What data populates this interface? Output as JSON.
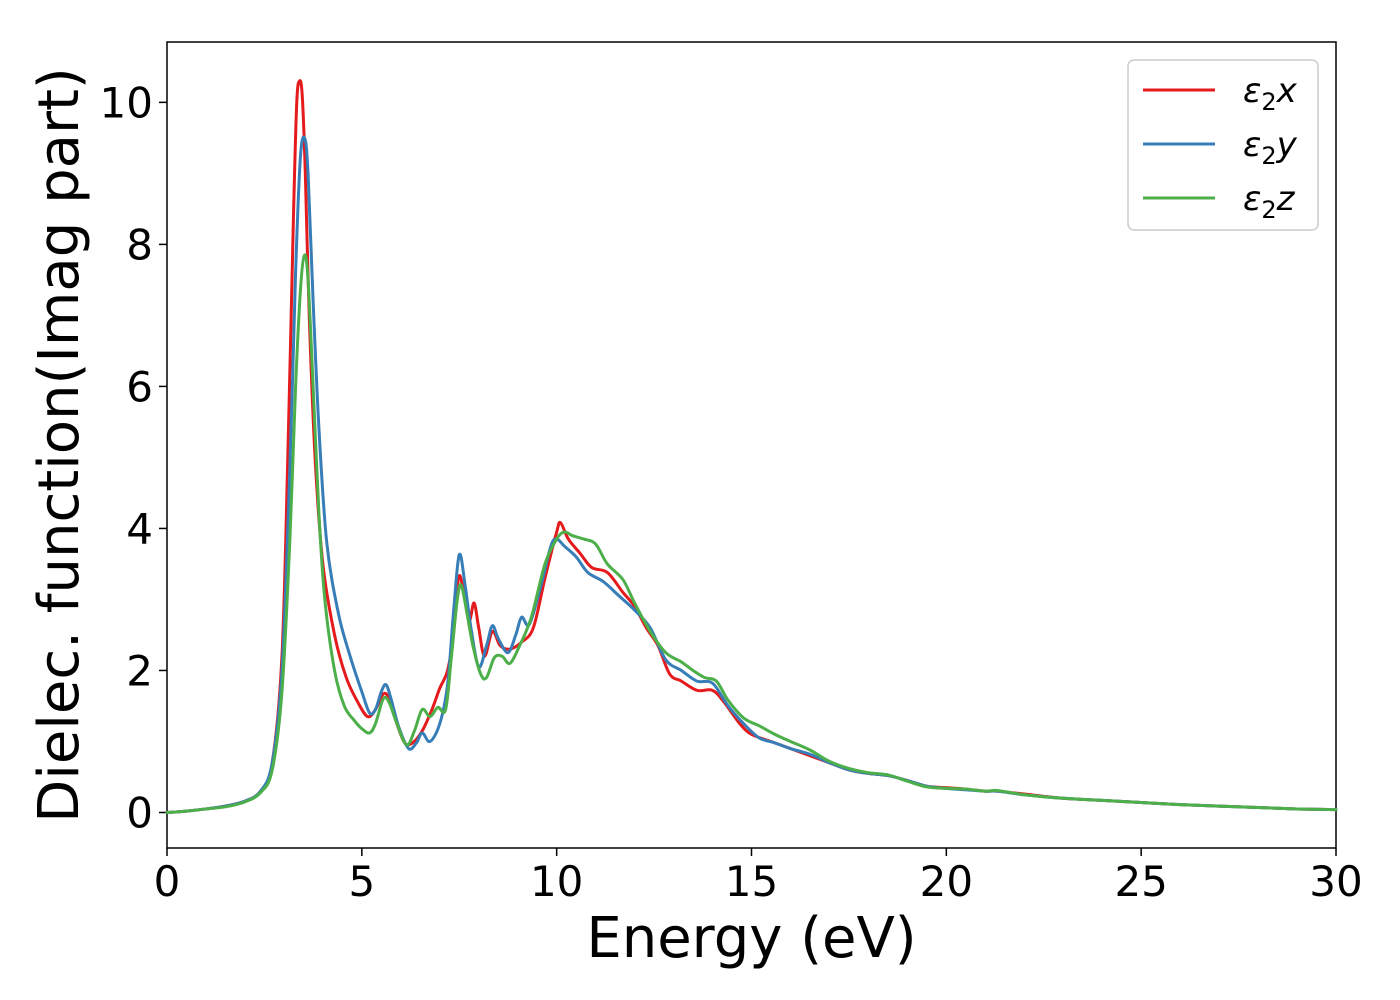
{
  "chart_data": {
    "type": "line",
    "title": "",
    "xlabel": "Energy (eV)",
    "ylabel": "Dielec. function(Imag part)",
    "xlim": [
      0,
      30
    ],
    "ylim": [
      -0.5,
      10.85
    ],
    "xticks": [
      0,
      5,
      10,
      15,
      20,
      25,
      30
    ],
    "yticks": [
      0,
      2,
      4,
      6,
      8,
      10
    ],
    "xtick_labels": [
      "0",
      "5",
      "10",
      "15",
      "20",
      "25",
      "30"
    ],
    "ytick_labels": [
      "0",
      "2",
      "4",
      "6",
      "8",
      "10"
    ],
    "grid": false,
    "legend_position": "top-right",
    "series": [
      {
        "name": "ε2x",
        "legend_base": "ε",
        "legend_sub": "2",
        "legend_suffix": "x",
        "color": "#e41a1c",
        "points": [
          [
            0,
            0
          ],
          [
            0.5,
            0.02
          ],
          [
            1.0,
            0.05
          ],
          [
            1.5,
            0.09
          ],
          [
            2.0,
            0.16
          ],
          [
            2.4,
            0.3
          ],
          [
            2.7,
            0.7
          ],
          [
            2.95,
            2.2
          ],
          [
            3.1,
            5.0
          ],
          [
            3.25,
            8.5
          ],
          [
            3.33,
            10.0
          ],
          [
            3.4,
            10.3
          ],
          [
            3.47,
            10.1
          ],
          [
            3.55,
            9.0
          ],
          [
            3.65,
            7.0
          ],
          [
            3.8,
            5.0
          ],
          [
            4.0,
            3.5
          ],
          [
            4.3,
            2.5
          ],
          [
            4.6,
            1.9
          ],
          [
            4.9,
            1.55
          ],
          [
            5.15,
            1.35
          ],
          [
            5.35,
            1.45
          ],
          [
            5.55,
            1.67
          ],
          [
            5.7,
            1.6
          ],
          [
            5.9,
            1.25
          ],
          [
            6.1,
            0.98
          ],
          [
            6.3,
            0.98
          ],
          [
            6.55,
            1.15
          ],
          [
            6.8,
            1.45
          ],
          [
            7.0,
            1.75
          ],
          [
            7.2,
            2.0
          ],
          [
            7.35,
            2.5
          ],
          [
            7.48,
            3.3
          ],
          [
            7.6,
            3.15
          ],
          [
            7.75,
            2.7
          ],
          [
            7.88,
            2.95
          ],
          [
            8.0,
            2.6
          ],
          [
            8.15,
            2.2
          ],
          [
            8.35,
            2.55
          ],
          [
            8.55,
            2.35
          ],
          [
            8.8,
            2.3
          ],
          [
            9.1,
            2.4
          ],
          [
            9.4,
            2.6
          ],
          [
            9.7,
            3.3
          ],
          [
            10.0,
            3.95
          ],
          [
            10.1,
            4.08
          ],
          [
            10.3,
            3.85
          ],
          [
            10.6,
            3.65
          ],
          [
            10.9,
            3.45
          ],
          [
            11.3,
            3.38
          ],
          [
            11.7,
            3.1
          ],
          [
            12.0,
            2.9
          ],
          [
            12.3,
            2.6
          ],
          [
            12.6,
            2.35
          ],
          [
            12.9,
            1.95
          ],
          [
            13.2,
            1.85
          ],
          [
            13.6,
            1.72
          ],
          [
            14.0,
            1.72
          ],
          [
            14.3,
            1.55
          ],
          [
            14.7,
            1.25
          ],
          [
            15.0,
            1.1
          ],
          [
            15.5,
            1.0
          ],
          [
            16.0,
            0.9
          ],
          [
            16.5,
            0.8
          ],
          [
            17.0,
            0.7
          ],
          [
            17.5,
            0.6
          ],
          [
            18.0,
            0.55
          ],
          [
            18.5,
            0.52
          ],
          [
            19.0,
            0.45
          ],
          [
            19.5,
            0.37
          ],
          [
            20.0,
            0.35
          ],
          [
            20.5,
            0.33
          ],
          [
            21.0,
            0.3
          ],
          [
            21.3,
            0.3
          ],
          [
            22.0,
            0.26
          ],
          [
            23.0,
            0.2
          ],
          [
            24.0,
            0.17
          ],
          [
            25.0,
            0.14
          ],
          [
            26.0,
            0.11
          ],
          [
            27.0,
            0.09
          ],
          [
            28.0,
            0.07
          ],
          [
            29.0,
            0.05
          ],
          [
            30.0,
            0.04
          ]
        ]
      },
      {
        "name": "ε2y",
        "legend_base": "ε",
        "legend_sub": "2",
        "legend_suffix": "y",
        "color": "#377eb8",
        "points": [
          [
            0,
            0
          ],
          [
            0.5,
            0.02
          ],
          [
            1.0,
            0.05
          ],
          [
            1.5,
            0.09
          ],
          [
            2.0,
            0.16
          ],
          [
            2.4,
            0.3
          ],
          [
            2.7,
            0.7
          ],
          [
            2.95,
            2.0
          ],
          [
            3.15,
            4.8
          ],
          [
            3.3,
            7.6
          ],
          [
            3.42,
            9.2
          ],
          [
            3.53,
            9.5
          ],
          [
            3.62,
            9.0
          ],
          [
            3.75,
            7.2
          ],
          [
            3.9,
            5.4
          ],
          [
            4.1,
            3.8
          ],
          [
            4.4,
            2.8
          ],
          [
            4.7,
            2.2
          ],
          [
            5.0,
            1.7
          ],
          [
            5.2,
            1.4
          ],
          [
            5.35,
            1.45
          ],
          [
            5.5,
            1.7
          ],
          [
            5.62,
            1.8
          ],
          [
            5.75,
            1.6
          ],
          [
            5.95,
            1.2
          ],
          [
            6.2,
            0.9
          ],
          [
            6.4,
            0.98
          ],
          [
            6.55,
            1.12
          ],
          [
            6.75,
            1.0
          ],
          [
            7.0,
            1.25
          ],
          [
            7.2,
            1.8
          ],
          [
            7.35,
            2.8
          ],
          [
            7.5,
            3.63
          ],
          [
            7.65,
            3.2
          ],
          [
            7.8,
            2.6
          ],
          [
            8.0,
            2.05
          ],
          [
            8.2,
            2.35
          ],
          [
            8.35,
            2.63
          ],
          [
            8.5,
            2.45
          ],
          [
            8.75,
            2.25
          ],
          [
            8.95,
            2.5
          ],
          [
            9.1,
            2.75
          ],
          [
            9.3,
            2.65
          ],
          [
            9.6,
            3.2
          ],
          [
            9.85,
            3.75
          ],
          [
            10.0,
            3.85
          ],
          [
            10.2,
            3.75
          ],
          [
            10.5,
            3.6
          ],
          [
            10.8,
            3.38
          ],
          [
            11.2,
            3.25
          ],
          [
            11.6,
            3.05
          ],
          [
            12.0,
            2.85
          ],
          [
            12.4,
            2.6
          ],
          [
            12.8,
            2.15
          ],
          [
            13.2,
            2.0
          ],
          [
            13.6,
            1.85
          ],
          [
            14.0,
            1.82
          ],
          [
            14.4,
            1.5
          ],
          [
            14.8,
            1.25
          ],
          [
            15.2,
            1.05
          ],
          [
            15.6,
            0.98
          ],
          [
            16.0,
            0.9
          ],
          [
            16.5,
            0.82
          ],
          [
            17.0,
            0.7
          ],
          [
            17.5,
            0.6
          ],
          [
            18.0,
            0.55
          ],
          [
            18.5,
            0.52
          ],
          [
            19.0,
            0.45
          ],
          [
            19.5,
            0.37
          ],
          [
            20.0,
            0.34
          ],
          [
            20.5,
            0.32
          ],
          [
            21.0,
            0.3
          ],
          [
            21.3,
            0.3
          ],
          [
            22.0,
            0.25
          ],
          [
            23.0,
            0.2
          ],
          [
            24.0,
            0.17
          ],
          [
            25.0,
            0.14
          ],
          [
            26.0,
            0.11
          ],
          [
            27.0,
            0.09
          ],
          [
            28.0,
            0.07
          ],
          [
            29.0,
            0.05
          ],
          [
            30.0,
            0.04
          ]
        ]
      },
      {
        "name": "ε2z",
        "legend_base": "ε",
        "legend_sub": "2",
        "legend_suffix": "z",
        "color": "#4daf4a",
        "points": [
          [
            0,
            0
          ],
          [
            0.5,
            0.02
          ],
          [
            1.0,
            0.05
          ],
          [
            1.5,
            0.08
          ],
          [
            2.0,
            0.15
          ],
          [
            2.4,
            0.28
          ],
          [
            2.7,
            0.6
          ],
          [
            2.95,
            1.7
          ],
          [
            3.15,
            3.8
          ],
          [
            3.3,
            6.0
          ],
          [
            3.43,
            7.4
          ],
          [
            3.53,
            7.85
          ],
          [
            3.62,
            7.5
          ],
          [
            3.75,
            6.0
          ],
          [
            3.9,
            4.2
          ],
          [
            4.05,
            3.0
          ],
          [
            4.3,
            2.0
          ],
          [
            4.55,
            1.5
          ],
          [
            4.8,
            1.3
          ],
          [
            5.0,
            1.18
          ],
          [
            5.2,
            1.12
          ],
          [
            5.35,
            1.25
          ],
          [
            5.55,
            1.6
          ],
          [
            5.7,
            1.55
          ],
          [
            5.9,
            1.25
          ],
          [
            6.15,
            0.95
          ],
          [
            6.35,
            1.15
          ],
          [
            6.55,
            1.45
          ],
          [
            6.75,
            1.35
          ],
          [
            6.95,
            1.48
          ],
          [
            7.15,
            1.45
          ],
          [
            7.3,
            2.2
          ],
          [
            7.45,
            3.0
          ],
          [
            7.55,
            3.2
          ],
          [
            7.7,
            2.8
          ],
          [
            7.85,
            2.35
          ],
          [
            8.05,
            1.95
          ],
          [
            8.2,
            1.9
          ],
          [
            8.4,
            2.18
          ],
          [
            8.6,
            2.2
          ],
          [
            8.8,
            2.1
          ],
          [
            9.05,
            2.35
          ],
          [
            9.35,
            2.75
          ],
          [
            9.7,
            3.5
          ],
          [
            10.0,
            3.85
          ],
          [
            10.2,
            3.95
          ],
          [
            10.4,
            3.9
          ],
          [
            10.7,
            3.85
          ],
          [
            11.0,
            3.78
          ],
          [
            11.3,
            3.5
          ],
          [
            11.7,
            3.28
          ],
          [
            12.0,
            2.95
          ],
          [
            12.4,
            2.55
          ],
          [
            12.8,
            2.25
          ],
          [
            13.2,
            2.12
          ],
          [
            13.5,
            2.0
          ],
          [
            13.8,
            1.9
          ],
          [
            14.1,
            1.85
          ],
          [
            14.4,
            1.58
          ],
          [
            14.8,
            1.33
          ],
          [
            15.2,
            1.22
          ],
          [
            15.6,
            1.1
          ],
          [
            16.0,
            1.0
          ],
          [
            16.5,
            0.88
          ],
          [
            17.0,
            0.72
          ],
          [
            17.5,
            0.62
          ],
          [
            18.0,
            0.56
          ],
          [
            18.5,
            0.53
          ],
          [
            19.0,
            0.44
          ],
          [
            19.5,
            0.36
          ],
          [
            20.0,
            0.34
          ],
          [
            20.5,
            0.33
          ],
          [
            21.0,
            0.3
          ],
          [
            21.3,
            0.31
          ],
          [
            22.0,
            0.25
          ],
          [
            23.0,
            0.2
          ],
          [
            24.0,
            0.17
          ],
          [
            25.0,
            0.14
          ],
          [
            26.0,
            0.11
          ],
          [
            27.0,
            0.09
          ],
          [
            28.0,
            0.07
          ],
          [
            29.0,
            0.05
          ],
          [
            30.0,
            0.04
          ]
        ]
      }
    ]
  }
}
